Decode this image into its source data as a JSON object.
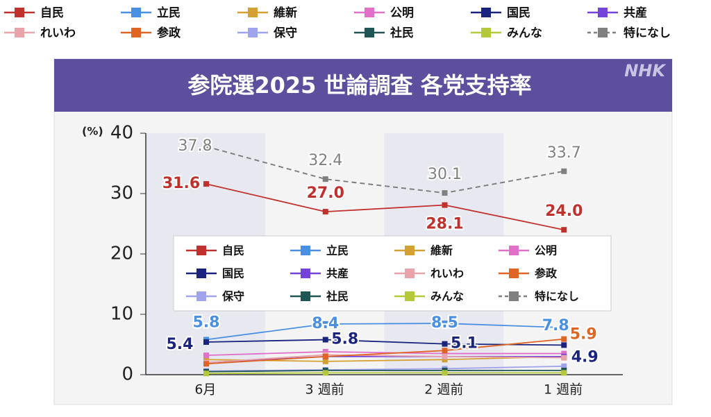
{
  "chart_data": {
    "type": "line",
    "title": "参院選2025 世論調査 各党支持率",
    "logo": "NHK",
    "y_label": "(%)",
    "categories": [
      "6月",
      "3 週前",
      "2 週前",
      "1 週前"
    ],
    "ylim": [
      0,
      40
    ],
    "yticks": [
      0,
      10,
      20,
      30,
      40
    ],
    "series": [
      {
        "name": "自民",
        "color": "#c0302c",
        "values": [
          31.6,
          27.0,
          28.1,
          24.0
        ],
        "value_labels": [
          "31.6",
          "27.0",
          "28.1",
          "24.0"
        ]
      },
      {
        "name": "立民",
        "color": "#4a90e2",
        "values": [
          5.8,
          8.4,
          8.5,
          7.8
        ],
        "value_labels": [
          "5.8",
          "8.4",
          "8.5",
          "7.8"
        ]
      },
      {
        "name": "維新",
        "color": "#d4a032",
        "values": [
          2.5,
          2.2,
          2.5,
          3.0
        ]
      },
      {
        "name": "公明",
        "color": "#e070c8",
        "values": [
          3.2,
          3.8,
          3.5,
          3.5
        ]
      },
      {
        "name": "国民",
        "color": "#1a237e",
        "values": [
          5.4,
          5.8,
          5.1,
          4.9
        ],
        "value_labels": [
          "5.4",
          "5.8",
          "5.1",
          "4.9"
        ]
      },
      {
        "name": "共産",
        "color": "#7444d8",
        "values": [
          2.0,
          3.0,
          3.0,
          3.0
        ]
      },
      {
        "name": "れいわ",
        "color": "#e8a4aa",
        "values": [
          2.0,
          3.3,
          3.0,
          2.8
        ]
      },
      {
        "name": "参政",
        "color": "#e06424",
        "values": [
          1.8,
          3.0,
          4.0,
          5.9
        ],
        "value_labels": [
          null,
          null,
          null,
          "5.9"
        ]
      },
      {
        "name": "保守",
        "color": "#a0a4ec",
        "values": [
          0.6,
          0.8,
          1.0,
          1.4
        ]
      },
      {
        "name": "社民",
        "color": "#1f5552",
        "values": [
          0.5,
          0.7,
          0.7,
          0.7
        ]
      },
      {
        "name": "みんな",
        "color": "#b4c83a",
        "values": [
          0.2,
          0.3,
          0.3,
          0.3
        ]
      },
      {
        "name": "特になし",
        "color": "#808080",
        "dashed": true,
        "values": [
          37.8,
          32.4,
          30.1,
          33.7
        ],
        "value_labels": [
          "37.8",
          "32.4",
          "30.1",
          "33.7"
        ]
      }
    ]
  }
}
